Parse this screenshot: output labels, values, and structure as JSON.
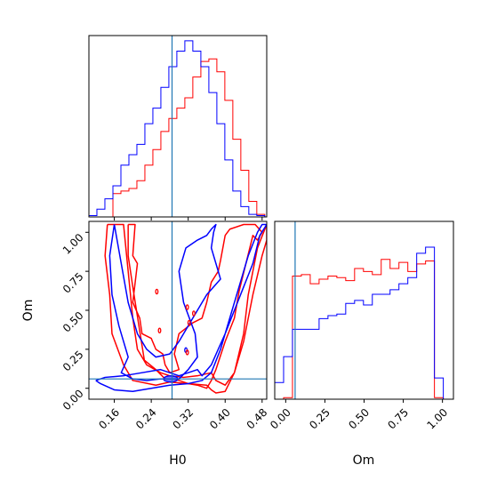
{
  "chart_data": {
    "type": "corner",
    "parameters": [
      "H0",
      "Om"
    ],
    "xlabels": {
      "H0": "H0",
      "Om": "Om"
    },
    "ylabels": {
      "Om": "Om"
    },
    "truth": {
      "H0": 0.285,
      "Om": 0.06
    },
    "colors": {
      "red_series": "#ff0000",
      "blue_series": "#0000ff",
      "truth": "#1f77b4"
    },
    "H0_axis": {
      "range": [
        0.105,
        0.49
      ],
      "ticks": [
        "0.16",
        "0.24",
        "0.32",
        "0.40",
        "0.48"
      ]
    },
    "Om_axis": {
      "range": [
        -0.07,
        1.07
      ],
      "ticks": [
        "0.00",
        "0.25",
        "0.50",
        "0.75",
        "1.00"
      ]
    },
    "hist_H0": {
      "bin_edges": [
        0.105,
        0.1223,
        0.1396,
        0.157,
        0.1743,
        0.1916,
        0.2089,
        0.2262,
        0.2435,
        0.2608,
        0.2781,
        0.2954,
        0.3127,
        0.33,
        0.3474,
        0.3647,
        0.382,
        0.3993,
        0.4166,
        0.4339,
        0.4512,
        0.4685,
        0.4858
      ],
      "series": [
        {
          "color": "red",
          "values": [
            0,
            0,
            0,
            0.09,
            0.1,
            0.11,
            0.14,
            0.2,
            0.26,
            0.33,
            0.38,
            0.42,
            0.46,
            0.54,
            0.6,
            0.61,
            0.56,
            0.45,
            0.3,
            0.18,
            0.06,
            0.01
          ]
        },
        {
          "color": "blue",
          "values": [
            0.005,
            0.03,
            0.07,
            0.12,
            0.2,
            0.24,
            0.28,
            0.36,
            0.42,
            0.5,
            0.58,
            0.64,
            0.68,
            0.64,
            0.58,
            0.48,
            0.36,
            0.22,
            0.1,
            0.04,
            0.01,
            0.005
          ]
        }
      ]
    },
    "hist_Om": {
      "bin_edges": [
        -0.07,
        -0.0134,
        0.0432,
        0.0998,
        0.1564,
        0.213,
        0.2696,
        0.3262,
        0.3828,
        0.4394,
        0.496,
        0.5526,
        0.6092,
        0.6658,
        0.7224,
        0.779,
        0.8356,
        0.8922,
        0.9488,
        1.0054,
        1.062
      ],
      "series": [
        {
          "color": "red",
          "values": [
            0,
            0.01,
            0.81,
            0.82,
            0.76,
            0.79,
            0.81,
            0.8,
            0.78,
            0.86,
            0.84,
            0.82,
            0.92,
            0.86,
            0.9,
            0.84,
            0.89,
            0.91,
            0.01,
            0
          ]
        },
        {
          "color": "blue",
          "values": [
            0.11,
            0.28,
            0.46,
            0.46,
            0.46,
            0.53,
            0.55,
            0.56,
            0.63,
            0.65,
            0.62,
            0.69,
            0.69,
            0.72,
            0.76,
            0.8,
            0.96,
            1.0,
            0.14,
            0
          ]
        }
      ]
    },
    "contours_2d": [
      {
        "color": "red",
        "x": [
          0.19,
          0.205,
          0.2,
          0.21,
          0.2,
          0.215,
          0.22,
          0.24,
          0.25,
          0.265,
          0.27,
          0.28,
          0.3,
          0.29,
          0.3,
          0.33,
          0.35,
          0.36,
          0.37,
          0.385,
          0.39,
          0.4,
          0.41,
          0.44,
          0.465,
          0.48,
          0.47,
          0.46,
          0.445,
          0.43,
          0.42,
          0.4,
          0.38,
          0.37,
          0.36,
          0.34,
          0.32,
          0.3,
          0.29,
          0.27,
          0.25,
          0.225,
          0.2,
          0.19,
          0.19
        ],
        "y": [
          1.05,
          1.05,
          0.85,
          0.8,
          0.55,
          0.45,
          0.35,
          0.32,
          0.25,
          0.22,
          0.15,
          0.1,
          0.12,
          0.22,
          0.35,
          0.42,
          0.45,
          0.55,
          0.68,
          0.75,
          0.82,
          0.98,
          1.02,
          1.05,
          1.05,
          1.0,
          0.95,
          0.98,
          0.8,
          0.62,
          0.45,
          0.3,
          0.12,
          0.05,
          0.0,
          0.02,
          0.03,
          0.05,
          0.06,
          0.06,
          0.12,
          0.18,
          0.65,
          0.85,
          1.05
        ]
      },
      {
        "color": "red",
        "x": [
          0.145,
          0.14,
          0.15,
          0.155,
          0.18,
          0.2,
          0.25,
          0.28,
          0.32,
          0.36,
          0.37,
          0.38,
          0.4,
          0.42,
          0.44,
          0.45,
          0.47,
          0.49,
          0.49,
          0.48,
          0.46,
          0.44,
          0.42,
          0.4,
          0.38,
          0.37,
          0.34,
          0.31,
          0.28,
          0.26,
          0.23,
          0.21,
          0.2,
          0.19,
          0.18,
          0.17,
          0.16,
          0.15,
          0.145
        ],
        "y": [
          1.05,
          0.85,
          0.6,
          0.35,
          0.15,
          0.05,
          0.02,
          0.04,
          0.03,
          0.02,
          -0.01,
          -0.03,
          -0.02,
          0.1,
          0.35,
          0.6,
          0.9,
          1.05,
          0.95,
          0.85,
          0.6,
          0.3,
          0.1,
          0.02,
          0.05,
          0.1,
          0.08,
          0.07,
          0.08,
          0.1,
          0.15,
          0.25,
          0.45,
          0.75,
          1.05,
          1.05,
          1.05,
          1.05,
          1.05
        ]
      },
      {
        "color": "blue",
        "x": [
          0.16,
          0.15,
          0.155,
          0.17,
          0.18,
          0.19,
          0.175,
          0.2,
          0.23,
          0.26,
          0.3,
          0.32,
          0.34,
          0.335,
          0.31,
          0.3,
          0.315,
          0.34,
          0.36,
          0.37,
          0.38,
          0.375,
          0.37,
          0.38,
          0.39,
          0.36,
          0.33,
          0.3,
          0.28,
          0.25,
          0.23,
          0.21,
          0.19,
          0.175,
          0.16
        ],
        "y": [
          1.05,
          0.85,
          0.6,
          0.4,
          0.3,
          0.2,
          0.1,
          0.06,
          0.05,
          0.06,
          0.06,
          0.12,
          0.2,
          0.35,
          0.55,
          0.75,
          0.9,
          0.95,
          0.98,
          1.02,
          1.05,
          1.0,
          0.9,
          0.8,
          0.7,
          0.6,
          0.45,
          0.3,
          0.22,
          0.2,
          0.25,
          0.35,
          0.55,
          0.8,
          1.05
        ]
      },
      {
        "color": "blue",
        "x": [
          0.12,
          0.13,
          0.16,
          0.2,
          0.24,
          0.28,
          0.32,
          0.35,
          0.37,
          0.39,
          0.41,
          0.43,
          0.45,
          0.47,
          0.48,
          0.49,
          0.475,
          0.46,
          0.44,
          0.42,
          0.4,
          0.385,
          0.37,
          0.35,
          0.34,
          0.32,
          0.3,
          0.28,
          0.26,
          0.22,
          0.18,
          0.14,
          0.12
        ],
        "y": [
          0.05,
          0.03,
          -0.01,
          -0.02,
          0.0,
          0.02,
          0.03,
          0.05,
          0.1,
          0.25,
          0.45,
          0.65,
          0.85,
          1.0,
          1.05,
          1.05,
          0.98,
          0.8,
          0.65,
          0.5,
          0.35,
          0.25,
          0.15,
          0.08,
          0.12,
          0.1,
          0.08,
          0.1,
          0.12,
          0.1,
          0.08,
          0.07,
          0.05
        ]
      }
    ]
  }
}
